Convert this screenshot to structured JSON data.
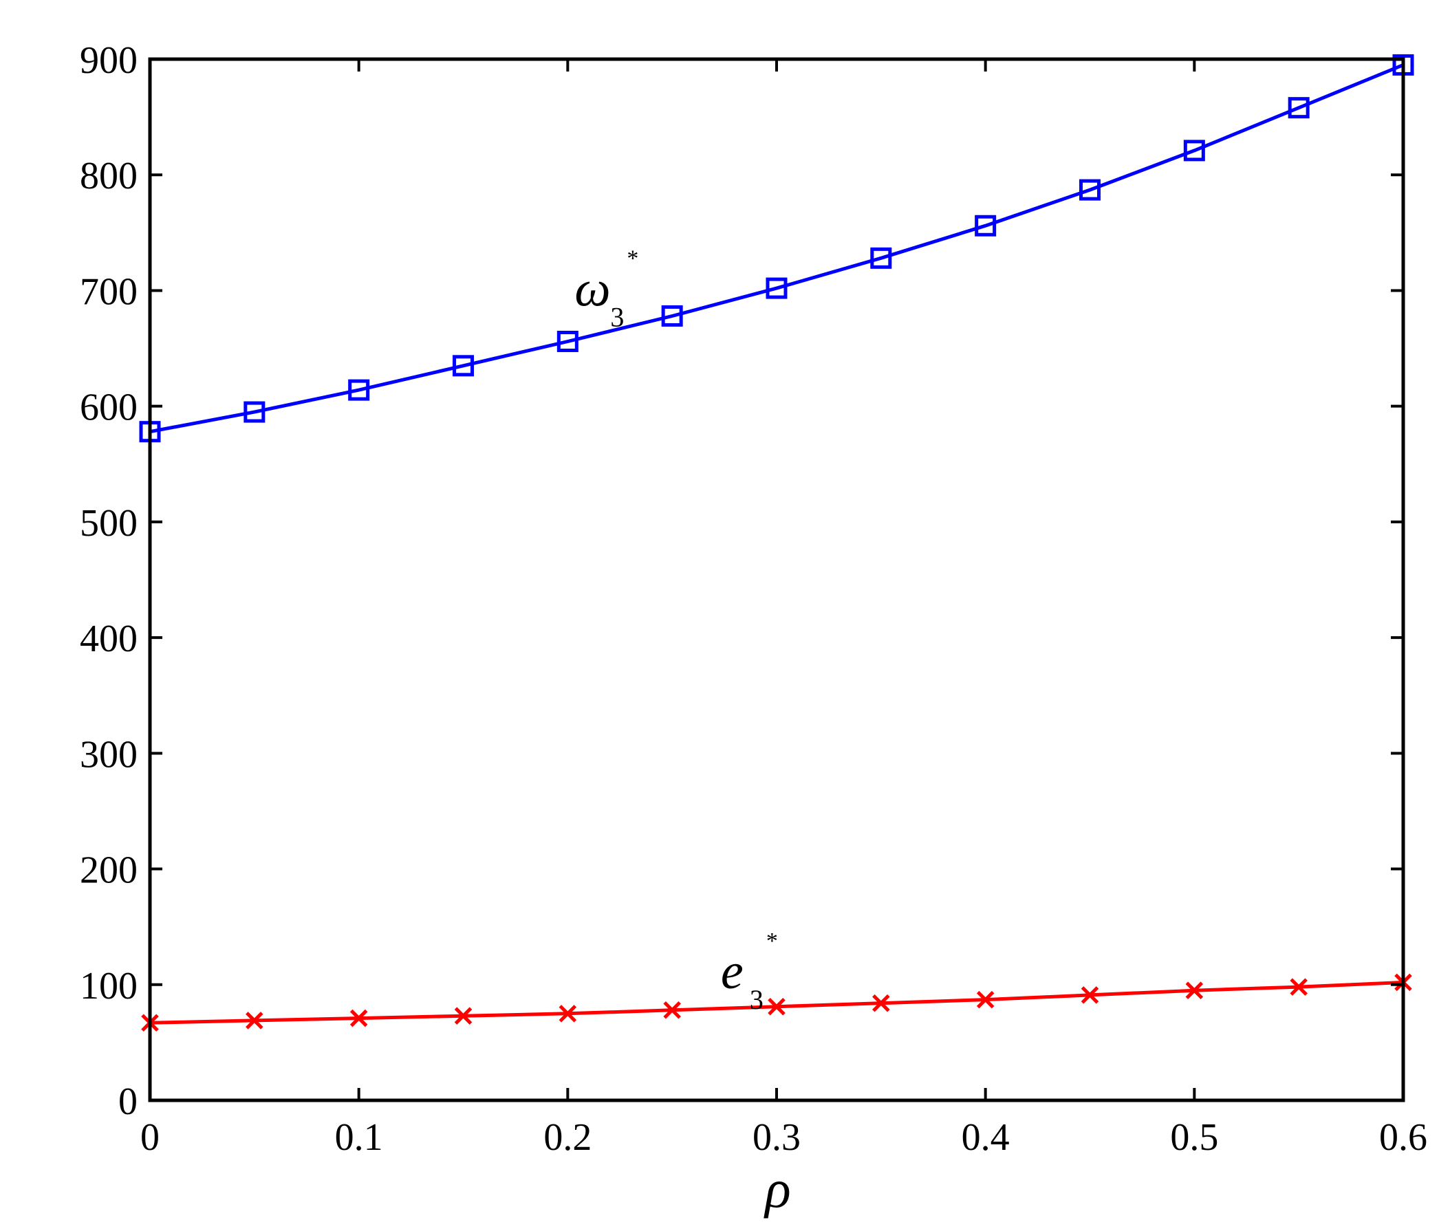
{
  "chart_data": {
    "type": "line",
    "xlabel": "ρ",
    "ylabel": "",
    "xlim": [
      0,
      0.6
    ],
    "ylim": [
      0,
      900
    ],
    "xticks": [
      "0",
      "0.1",
      "0.2",
      "0.3",
      "0.4",
      "0.5",
      "0.6"
    ],
    "yticks": [
      "0",
      "100",
      "200",
      "300",
      "400",
      "500",
      "600",
      "700",
      "800",
      "900"
    ],
    "grid": false,
    "legend": "none",
    "x": [
      0,
      0.05,
      0.1,
      0.15,
      0.2,
      0.25,
      0.3,
      0.35,
      0.4,
      0.45,
      0.5,
      0.55,
      0.6
    ],
    "series": [
      {
        "label": {
          "base": "ω",
          "sub": "3",
          "sup": "*"
        },
        "color": "#0000ff",
        "marker": "square",
        "label_at": [
          0.2,
          700
        ],
        "values": [
          578,
          595,
          614,
          635,
          656,
          678,
          702,
          728,
          756,
          787,
          821,
          858,
          895
        ]
      },
      {
        "label": {
          "base": "e",
          "sub": "3",
          "sup": "*"
        },
        "color": "#ff0000",
        "marker": "x",
        "label_at": [
          0.27,
          110
        ],
        "values": [
          67,
          69,
          71,
          73,
          75,
          78,
          81,
          84,
          87,
          91,
          95,
          98,
          102
        ]
      }
    ]
  }
}
